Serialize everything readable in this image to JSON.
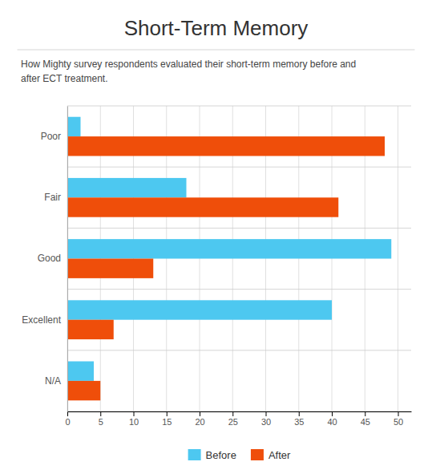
{
  "chart_data": {
    "type": "bar",
    "orientation": "horizontal",
    "title": "Short-Term Memory",
    "subtitle": "How Mighty survey respondents evaluated their short-term memory before and\nafter ECT treatment.",
    "categories": [
      "N/A",
      "Excellent",
      "Good",
      "Fair",
      "Poor"
    ],
    "series": [
      {
        "name": "Before",
        "color": "#4DC8F0",
        "values": [
          4,
          40,
          49,
          18,
          2
        ]
      },
      {
        "name": "After",
        "color": "#EF4E0A",
        "values": [
          5,
          7,
          13,
          41,
          48
        ]
      }
    ],
    "xlim": [
      0,
      52
    ],
    "xticks": [
      0,
      5,
      10,
      15,
      20,
      25,
      30,
      35,
      40,
      45,
      50
    ],
    "grid": true,
    "legend": "bottom"
  }
}
